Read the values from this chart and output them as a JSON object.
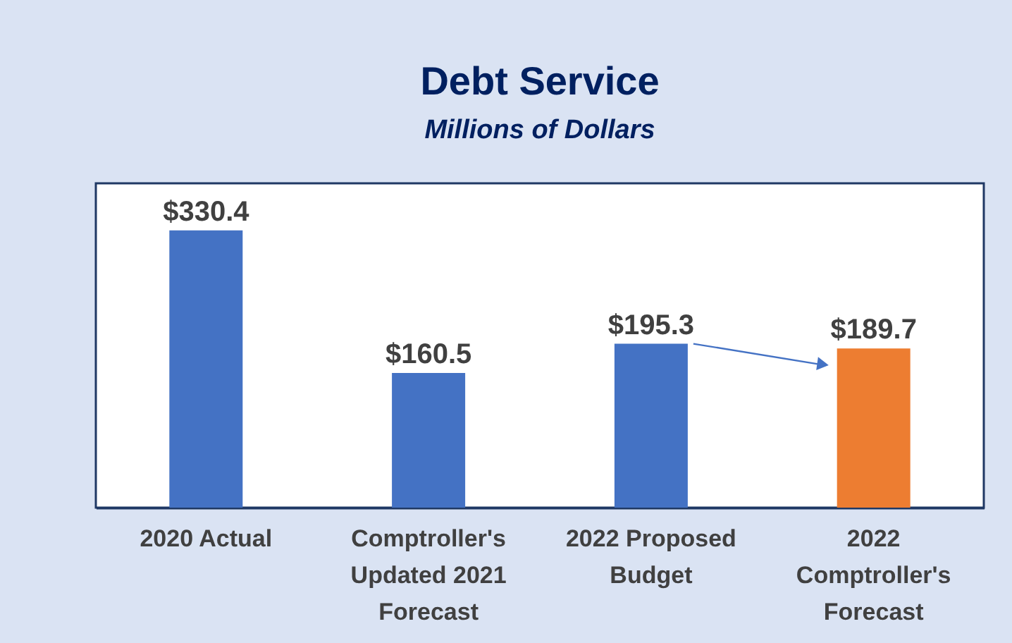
{
  "chart_data": {
    "type": "bar",
    "title": "Debt Service",
    "subtitle": "Millions of Dollars",
    "categories": [
      "2020 Actual",
      "Comptroller's Updated 2021 Forecast",
      "2022 Proposed Budget",
      "2022 Comptroller's Forecast"
    ],
    "values": [
      330.4,
      160.5,
      195.3,
      189.7
    ],
    "colors": [
      "#4472c4",
      "#4472c4",
      "#4472c4",
      "#ed7d31"
    ],
    "value_labels": [
      "$330.4",
      "$160.5",
      "$195.3",
      "$189.7"
    ],
    "grid": false
  }
}
